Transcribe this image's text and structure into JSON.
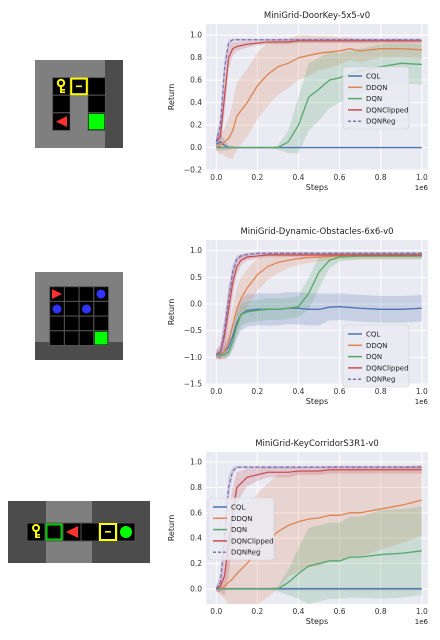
{
  "panels": [
    {
      "env_name": "DoorKey-5x5",
      "chart_data": {
        "type": "line",
        "title": "MiniGrid-DoorKey-5x5-v0",
        "xlabel": "Steps",
        "ylabel": "Return",
        "x_multiplier_label": "1e6",
        "xlim": [
          -0.05,
          1.03
        ],
        "ylim": [
          -0.2,
          1.1
        ],
        "xticks": [
          0.0,
          0.2,
          0.4,
          0.6,
          0.8,
          1.0
        ],
        "xtick_labels": [
          "0.0",
          "0.2",
          "0.4",
          "0.6",
          "0.8",
          "1.0"
        ],
        "yticks": [
          -0.2,
          0.0,
          0.2,
          0.4,
          0.6,
          0.8,
          1.0
        ],
        "ytick_labels": [
          "−0.2",
          "0.0",
          "0.2",
          "0.4",
          "0.6",
          "0.8",
          "1.0"
        ],
        "grid": true,
        "legend_position": "center-right",
        "x": [
          0.0,
          0.02,
          0.04,
          0.06,
          0.08,
          0.1,
          0.15,
          0.2,
          0.25,
          0.3,
          0.35,
          0.4,
          0.45,
          0.5,
          0.55,
          0.6,
          0.65,
          0.7,
          0.8,
          0.9,
          1.0
        ],
        "series": [
          {
            "name": "CQL",
            "color": "#4c72b0",
            "dashed": false,
            "values": [
              0.03,
              0.05,
              0.02,
              0.0,
              0.0,
              0.0,
              0.0,
              0.0,
              0.0,
              0.0,
              0.0,
              0.0,
              0.0,
              0.0,
              0.0,
              0.0,
              0.0,
              0.0,
              0.0,
              0.0,
              0.0
            ],
            "band": [
              0.06,
              0.08,
              0.05,
              0.02,
              0.01,
              0.0,
              0.0,
              0.0,
              0.0,
              0.0,
              0.0,
              0.0,
              0.0,
              0.0,
              0.0,
              0.0,
              0.0,
              0.0,
              0.0,
              0.0,
              0.0
            ]
          },
          {
            "name": "DDQN",
            "color": "#dd8452",
            "dashed": false,
            "values": [
              0.0,
              0.02,
              0.05,
              0.08,
              0.15,
              0.28,
              0.4,
              0.55,
              0.65,
              0.72,
              0.75,
              0.8,
              0.82,
              0.84,
              0.85,
              0.86,
              0.88,
              0.86,
              0.88,
              0.88,
              0.87
            ],
            "band": [
              0.03,
              0.08,
              0.12,
              0.18,
              0.25,
              0.3,
              0.3,
              0.3,
              0.28,
              0.25,
              0.22,
              0.2,
              0.18,
              0.15,
              0.14,
              0.12,
              0.1,
              0.1,
              0.08,
              0.08,
              0.08
            ]
          },
          {
            "name": "DQN",
            "color": "#55a868",
            "dashed": false,
            "values": [
              0.0,
              0.0,
              0.0,
              0.0,
              0.0,
              0.0,
              0.0,
              0.0,
              0.0,
              0.0,
              0.05,
              0.2,
              0.45,
              0.52,
              0.6,
              0.62,
              0.66,
              0.68,
              0.72,
              0.75,
              0.74
            ],
            "band": [
              0.0,
              0.0,
              0.0,
              0.0,
              0.0,
              0.0,
              0.0,
              0.0,
              0.0,
              0.02,
              0.1,
              0.25,
              0.3,
              0.28,
              0.25,
              0.22,
              0.2,
              0.2,
              0.2,
              0.18,
              0.18
            ]
          },
          {
            "name": "DQNClipped",
            "color": "#c44e52",
            "dashed": false,
            "values": [
              0.05,
              0.1,
              0.45,
              0.8,
              0.88,
              0.9,
              0.92,
              0.93,
              0.94,
              0.94,
              0.94,
              0.95,
              0.95,
              0.95,
              0.95,
              0.95,
              0.95,
              0.95,
              0.95,
              0.95,
              0.95
            ],
            "band": [
              0.05,
              0.1,
              0.15,
              0.1,
              0.06,
              0.04,
              0.03,
              0.02,
              0.02,
              0.02,
              0.02,
              0.02,
              0.02,
              0.02,
              0.02,
              0.02,
              0.02,
              0.02,
              0.02,
              0.02,
              0.02
            ]
          },
          {
            "name": "DQNReg",
            "color": "#8172b3",
            "dashed": true,
            "values": [
              0.05,
              0.2,
              0.7,
              0.93,
              0.96,
              0.96,
              0.96,
              0.96,
              0.96,
              0.96,
              0.96,
              0.96,
              0.96,
              0.96,
              0.96,
              0.96,
              0.96,
              0.96,
              0.96,
              0.96,
              0.96
            ],
            "band": [
              0.05,
              0.1,
              0.1,
              0.03,
              0.01,
              0.01,
              0.01,
              0.01,
              0.01,
              0.01,
              0.01,
              0.01,
              0.01,
              0.01,
              0.01,
              0.01,
              0.01,
              0.01,
              0.01,
              0.01,
              0.01
            ]
          }
        ]
      }
    },
    {
      "env_name": "Dynamic-Obstacles-6x6",
      "chart_data": {
        "type": "line",
        "title": "MiniGrid-Dynamic-Obstacles-6x6-v0",
        "xlabel": "Steps",
        "ylabel": "Return",
        "x_multiplier_label": "1e6",
        "xlim": [
          -0.05,
          1.03
        ],
        "ylim": [
          -1.5,
          1.2
        ],
        "xticks": [
          0.0,
          0.2,
          0.4,
          0.6,
          0.8,
          1.0
        ],
        "xtick_labels": [
          "0.0",
          "0.2",
          "0.4",
          "0.6",
          "0.8",
          "1.0"
        ],
        "yticks": [
          -1.5,
          -1.0,
          -0.5,
          0.0,
          0.5,
          1.0
        ],
        "ytick_labels": [
          "−1.5",
          "−1.0",
          "−0.5",
          "0.0",
          "0.5",
          "1.0"
        ],
        "grid": true,
        "legend_position": "lower-right",
        "x": [
          0.0,
          0.02,
          0.04,
          0.06,
          0.08,
          0.1,
          0.12,
          0.15,
          0.2,
          0.25,
          0.3,
          0.35,
          0.4,
          0.45,
          0.5,
          0.55,
          0.6,
          0.7,
          0.8,
          0.9,
          1.0
        ],
        "series": [
          {
            "name": "CQL",
            "color": "#4c72b0",
            "dashed": false,
            "values": [
              -0.95,
              -0.95,
              -0.9,
              -0.8,
              -0.6,
              -0.35,
              -0.2,
              -0.12,
              -0.1,
              -0.1,
              -0.1,
              -0.08,
              -0.08,
              -0.1,
              -0.1,
              -0.06,
              -0.05,
              -0.08,
              -0.1,
              -0.1,
              -0.08
            ],
            "band": [
              0.05,
              0.08,
              0.12,
              0.2,
              0.25,
              0.3,
              0.3,
              0.3,
              0.3,
              0.3,
              0.3,
              0.3,
              0.3,
              0.3,
              0.3,
              0.25,
              0.25,
              0.25,
              0.25,
              0.25,
              0.25
            ]
          },
          {
            "name": "DDQN",
            "color": "#dd8452",
            "dashed": false,
            "values": [
              -0.95,
              -0.95,
              -0.9,
              -0.7,
              -0.4,
              -0.1,
              0.1,
              0.3,
              0.55,
              0.7,
              0.78,
              0.82,
              0.85,
              0.87,
              0.88,
              0.89,
              0.9,
              0.9,
              0.9,
              0.9,
              0.9
            ],
            "band": [
              0.05,
              0.08,
              0.15,
              0.25,
              0.35,
              0.4,
              0.4,
              0.35,
              0.3,
              0.25,
              0.2,
              0.15,
              0.12,
              0.1,
              0.08,
              0.07,
              0.06,
              0.06,
              0.06,
              0.06,
              0.06
            ]
          },
          {
            "name": "DQN",
            "color": "#55a868",
            "dashed": false,
            "values": [
              -0.95,
              -0.95,
              -0.95,
              -0.9,
              -0.7,
              -0.4,
              -0.2,
              -0.15,
              -0.12,
              -0.1,
              -0.1,
              -0.08,
              -0.05,
              0.2,
              0.6,
              0.82,
              0.88,
              0.9,
              0.9,
              0.9,
              0.9
            ],
            "band": [
              0.05,
              0.05,
              0.05,
              0.08,
              0.15,
              0.2,
              0.2,
              0.2,
              0.2,
              0.2,
              0.2,
              0.2,
              0.2,
              0.3,
              0.3,
              0.15,
              0.08,
              0.06,
              0.06,
              0.06,
              0.06
            ]
          },
          {
            "name": "DQNClipped",
            "color": "#c44e52",
            "dashed": false,
            "values": [
              -0.95,
              -0.9,
              -0.6,
              -0.1,
              0.4,
              0.7,
              0.82,
              0.88,
              0.9,
              0.92,
              0.92,
              0.92,
              0.92,
              0.92,
              0.92,
              0.92,
              0.92,
              0.92,
              0.92,
              0.92,
              0.92
            ],
            "band": [
              0.08,
              0.15,
              0.3,
              0.35,
              0.25,
              0.15,
              0.1,
              0.06,
              0.05,
              0.04,
              0.04,
              0.04,
              0.04,
              0.04,
              0.04,
              0.04,
              0.04,
              0.04,
              0.04,
              0.04,
              0.04
            ]
          },
          {
            "name": "DQNReg",
            "color": "#8172b3",
            "dashed": true,
            "values": [
              -0.95,
              -0.9,
              -0.5,
              0.1,
              0.6,
              0.85,
              0.9,
              0.93,
              0.95,
              0.95,
              0.95,
              0.95,
              0.95,
              0.95,
              0.95,
              0.95,
              0.95,
              0.95,
              0.95,
              0.95,
              0.95
            ],
            "band": [
              0.08,
              0.12,
              0.25,
              0.25,
              0.15,
              0.06,
              0.04,
              0.03,
              0.03,
              0.03,
              0.03,
              0.03,
              0.03,
              0.03,
              0.03,
              0.03,
              0.03,
              0.03,
              0.03,
              0.03,
              0.03
            ]
          }
        ]
      }
    },
    {
      "env_name": "KeyCorridorS3R1",
      "chart_data": {
        "type": "line",
        "title": "MiniGrid-KeyCorridorS3R1-v0",
        "xlabel": "Steps",
        "ylabel": "Return",
        "x_multiplier_label": "1e6",
        "xlim": [
          -0.05,
          1.03
        ],
        "ylim": [
          -0.12,
          1.08
        ],
        "xticks": [
          0.0,
          0.2,
          0.4,
          0.6,
          0.8,
          1.0
        ],
        "xtick_labels": [
          "0.0",
          "0.2",
          "0.4",
          "0.6",
          "0.8",
          "1.0"
        ],
        "yticks": [
          0.0,
          0.2,
          0.4,
          0.6,
          0.8,
          1.0
        ],
        "ytick_labels": [
          "0.0",
          "0.2",
          "0.4",
          "0.6",
          "0.8",
          "1.0"
        ],
        "grid": true,
        "legend_position": "upper-left",
        "x": [
          0.0,
          0.02,
          0.04,
          0.06,
          0.08,
          0.1,
          0.15,
          0.2,
          0.25,
          0.3,
          0.35,
          0.4,
          0.45,
          0.5,
          0.55,
          0.6,
          0.65,
          0.7,
          0.8,
          0.9,
          1.0
        ],
        "series": [
          {
            "name": "CQL",
            "color": "#4c72b0",
            "dashed": false,
            "values": [
              0.0,
              0.0,
              0.0,
              0.0,
              0.0,
              0.0,
              0.0,
              0.0,
              0.0,
              0.0,
              0.0,
              0.0,
              0.0,
              0.0,
              0.0,
              0.0,
              0.0,
              0.0,
              0.0,
              0.0,
              0.0
            ],
            "band": [
              0.01,
              0.01,
              0.01,
              0.01,
              0.01,
              0.01,
              0.01,
              0.01,
              0.01,
              0.01,
              0.01,
              0.01,
              0.01,
              0.01,
              0.01,
              0.01,
              0.01,
              0.01,
              0.01,
              0.01,
              0.01
            ]
          },
          {
            "name": "DDQN",
            "color": "#dd8452",
            "dashed": false,
            "values": [
              0.0,
              0.0,
              0.02,
              0.05,
              0.08,
              0.12,
              0.2,
              0.3,
              0.38,
              0.45,
              0.5,
              0.53,
              0.55,
              0.56,
              0.58,
              0.58,
              0.6,
              0.6,
              0.63,
              0.66,
              0.7
            ],
            "band": [
              0.02,
              0.05,
              0.1,
              0.2,
              0.3,
              0.4,
              0.45,
              0.45,
              0.45,
              0.45,
              0.4,
              0.4,
              0.38,
              0.38,
              0.36,
              0.36,
              0.35,
              0.35,
              0.32,
              0.3,
              0.28
            ]
          },
          {
            "name": "DQN",
            "color": "#55a868",
            "dashed": false,
            "values": [
              0.0,
              0.0,
              0.0,
              0.0,
              0.0,
              0.0,
              0.0,
              0.0,
              0.0,
              0.0,
              0.05,
              0.12,
              0.18,
              0.2,
              0.22,
              0.22,
              0.25,
              0.25,
              0.27,
              0.28,
              0.3
            ],
            "band": [
              0.0,
              0.0,
              0.0,
              0.0,
              0.0,
              0.0,
              0.0,
              0.0,
              0.0,
              0.02,
              0.1,
              0.2,
              0.3,
              0.3,
              0.3,
              0.3,
              0.32,
              0.32,
              0.35,
              0.35,
              0.35
            ]
          },
          {
            "name": "DQNClipped",
            "color": "#c44e52",
            "dashed": false,
            "values": [
              0.0,
              0.02,
              0.1,
              0.35,
              0.6,
              0.8,
              0.88,
              0.9,
              0.92,
              0.92,
              0.92,
              0.93,
              0.93,
              0.93,
              0.94,
              0.94,
              0.94,
              0.94,
              0.94,
              0.94,
              0.94
            ],
            "band": [
              0.02,
              0.05,
              0.15,
              0.25,
              0.2,
              0.12,
              0.07,
              0.05,
              0.04,
              0.04,
              0.04,
              0.03,
              0.03,
              0.03,
              0.03,
              0.03,
              0.03,
              0.03,
              0.03,
              0.03,
              0.03
            ]
          },
          {
            "name": "DQNReg",
            "color": "#8172b3",
            "dashed": true,
            "values": [
              0.0,
              0.05,
              0.4,
              0.8,
              0.93,
              0.96,
              0.96,
              0.96,
              0.96,
              0.96,
              0.96,
              0.96,
              0.96,
              0.96,
              0.96,
              0.96,
              0.96,
              0.96,
              0.96,
              0.96,
              0.96
            ],
            "band": [
              0.02,
              0.08,
              0.15,
              0.1,
              0.03,
              0.01,
              0.01,
              0.01,
              0.01,
              0.01,
              0.01,
              0.01,
              0.01,
              0.01,
              0.01,
              0.01,
              0.01,
              0.01,
              0.01,
              0.01,
              0.01
            ]
          }
        ]
      }
    }
  ],
  "colors": {
    "plot_background": "#eaeaf2",
    "grid": "#ffffff",
    "wall": "#7f7f7f",
    "floor": "#000000",
    "grid_line": "#444444",
    "key": "#ffff00",
    "door": "#ffff00",
    "goal": "#00ff00",
    "agent": "#ff3030",
    "obstacle": "#3333ff",
    "view_shade": "#5a5a5a"
  }
}
